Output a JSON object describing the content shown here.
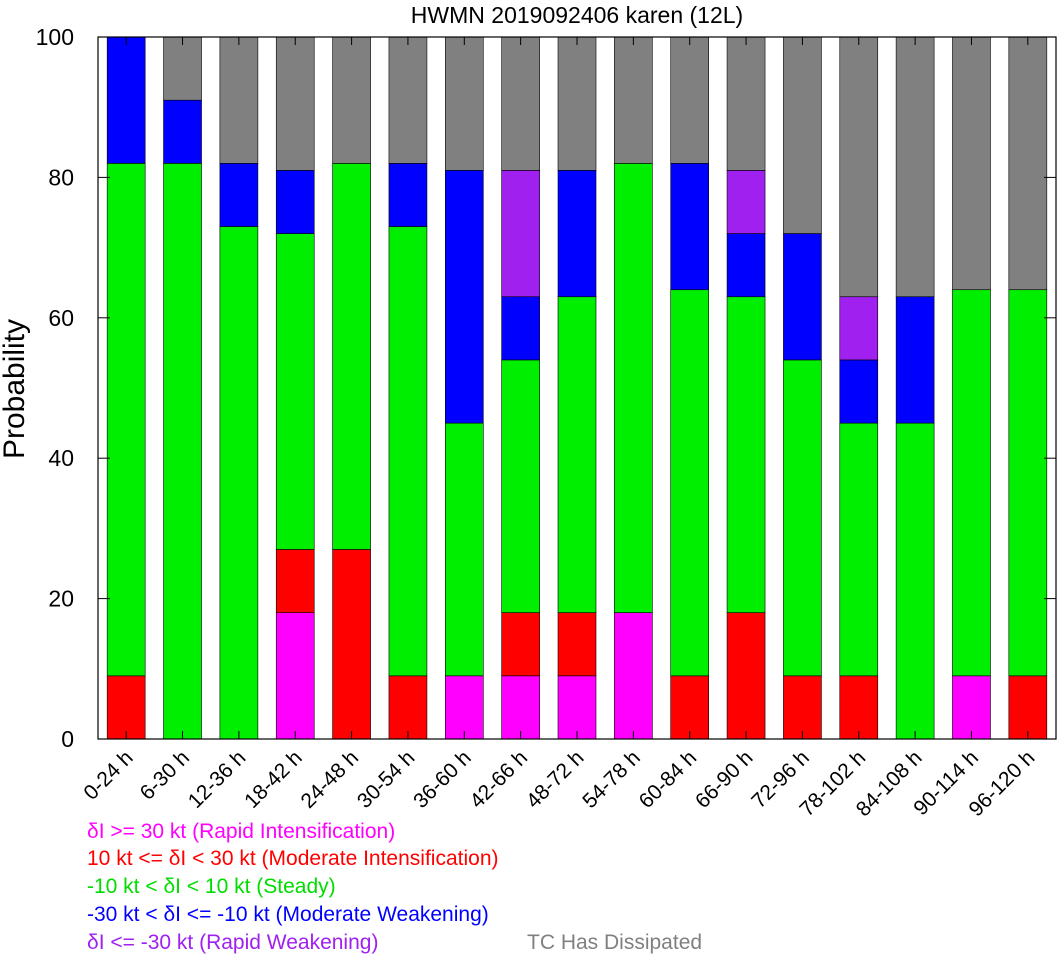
{
  "chart_data": {
    "type": "bar",
    "stacked": true,
    "title": "HWMN 2019092406 karen (12L)",
    "xlabel": "",
    "ylabel": "Probability",
    "ylim": [
      0,
      100
    ],
    "yticks": [
      0,
      20,
      40,
      60,
      80,
      100
    ],
    "grid": false,
    "legend_placement": "bottom-left",
    "categories": [
      "0-24 h",
      "6-30 h",
      "12-36 h",
      "18-42 h",
      "24-48 h",
      "30-54 h",
      "36-60 h",
      "42-66 h",
      "48-72 h",
      "54-78 h",
      "60-84 h",
      "66-90 h",
      "72-96 h",
      "78-102 h",
      "84-108 h",
      "90-114 h",
      "96-120 h"
    ],
    "series": [
      {
        "name": "δI >= 30 kt (Rapid Intensification)",
        "color": "#ff00ff",
        "values": [
          0,
          0,
          0,
          18,
          0,
          0,
          9,
          9,
          9,
          18,
          0,
          0,
          0,
          0,
          0,
          9,
          0
        ]
      },
      {
        "name": "10 kt <= δI < 30 kt (Moderate Intensification)",
        "color": "#ff0000",
        "values": [
          9,
          0,
          0,
          9,
          27,
          9,
          0,
          9,
          9,
          0,
          9,
          18,
          9,
          9,
          0,
          0,
          9
        ]
      },
      {
        "name": "-10 kt < δI < 10 kt (Steady)",
        "color": "#00ee00",
        "values": [
          73,
          82,
          73,
          45,
          55,
          64,
          36,
          36,
          45,
          64,
          55,
          45,
          45,
          36,
          45,
          55,
          55
        ]
      },
      {
        "name": "-30 kt < δI <= -10 kt (Moderate Weakening)",
        "color": "#0000ff",
        "values": [
          18,
          9,
          9,
          9,
          0,
          9,
          36,
          9,
          18,
          0,
          18,
          9,
          18,
          9,
          18,
          0,
          0
        ]
      },
      {
        "name": "δI <= -30 kt (Rapid Weakening)",
        "color": "#a020f0",
        "values": [
          0,
          0,
          0,
          0,
          0,
          0,
          0,
          18,
          0,
          0,
          0,
          9,
          0,
          9,
          0,
          0,
          0
        ]
      },
      {
        "name": "TC Has Dissipated",
        "color": "#808080",
        "values": [
          0,
          9,
          18,
          19,
          18,
          18,
          19,
          19,
          19,
          18,
          18,
          19,
          28,
          37,
          37,
          36,
          36
        ]
      }
    ]
  },
  "legend": [
    {
      "text": "δI >= 30 kt (Rapid Intensification)",
      "color": "#ff00ff"
    },
    {
      "text": "10 kt <= δI < 30 kt (Moderate Intensification)",
      "color": "#ff0000"
    },
    {
      "text": "-10 kt < δI < 10 kt (Steady)",
      "color": "#00dd00"
    },
    {
      "text": "-30 kt < δI <= -10 kt (Moderate Weakening)",
      "color": "#0000ff"
    },
    {
      "text": "δI <= -30 kt (Rapid Weakening)",
      "color": "#a020f0"
    },
    {
      "text": "TC Has Dissipated",
      "color": "#808080"
    }
  ]
}
